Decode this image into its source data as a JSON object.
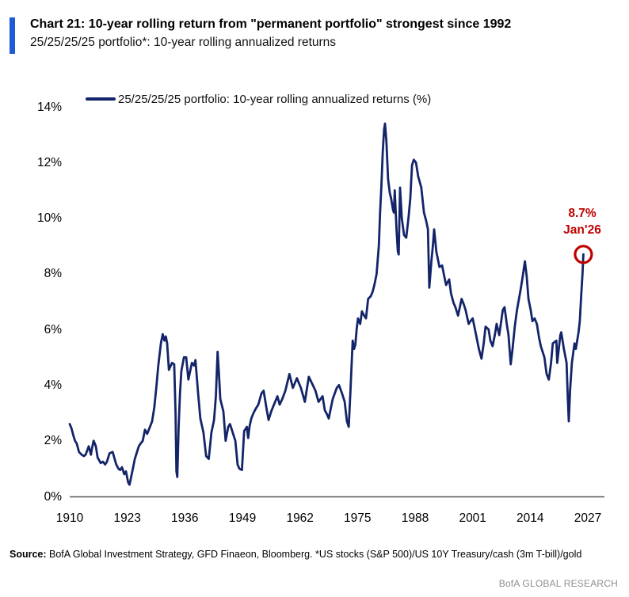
{
  "header": {
    "title": "Chart 21: 10-year rolling return from \"permanent portfolio\" strongest since 1992",
    "subtitle": "25/25/25/25 portfolio*: 10-year rolling annualized returns"
  },
  "legend": {
    "label": "25/25/25/25 portfolio: 10-year rolling annualized returns (%)"
  },
  "annotation": {
    "value": "8.7%",
    "date": "Jan'26"
  },
  "footer": {
    "source_label": "Source:",
    "source_text": " BofA Global Investment Strategy, GFD Finaeon, Bloomberg. *US stocks (S&P 500)/US 10Y Treasury/cash (3m T-bill)/gold",
    "brand": "BofA GLOBAL RESEARCH"
  },
  "colors": {
    "accent_bar": "#1e5bd6",
    "line": "#132469",
    "annotation_red": "#c00000",
    "axis": "#555555",
    "brand_text": "#8f8f8f"
  },
  "chart_data": {
    "type": "line",
    "title": "25/25/25/25 portfolio: 10-year rolling annualized returns (%)",
    "xlabel": "",
    "ylabel": "",
    "xlim": [
      1910,
      2027
    ],
    "ylim": [
      0,
      14
    ],
    "x_ticks": [
      1910,
      1923,
      1936,
      1949,
      1962,
      1975,
      1988,
      2001,
      2014,
      2027
    ],
    "y_ticks": [
      0,
      2,
      4,
      6,
      8,
      10,
      12,
      14
    ],
    "y_tick_suffix": "%",
    "grid": false,
    "legend_position": "top-left",
    "end_annotation": {
      "x": 2026.0,
      "y": 8.7,
      "label_value": "8.7%",
      "label_date": "Jan'26",
      "circled": true
    },
    "series": [
      {
        "name": "25/25/25/25 portfolio: 10-year rolling annualized returns (%)",
        "points": [
          [
            1910.0,
            2.6
          ],
          [
            1910.4,
            2.45
          ],
          [
            1910.8,
            2.2
          ],
          [
            1911.2,
            2.0
          ],
          [
            1911.6,
            1.9
          ],
          [
            1912.1,
            1.6
          ],
          [
            1912.7,
            1.5
          ],
          [
            1913.2,
            1.45
          ],
          [
            1913.6,
            1.5
          ],
          [
            1914.3,
            1.8
          ],
          [
            1914.8,
            1.5
          ],
          [
            1915.0,
            1.7
          ],
          [
            1915.4,
            2.0
          ],
          [
            1915.9,
            1.8
          ],
          [
            1916.3,
            1.4
          ],
          [
            1917.0,
            1.2
          ],
          [
            1917.5,
            1.25
          ],
          [
            1918.0,
            1.15
          ],
          [
            1918.4,
            1.25
          ],
          [
            1919.0,
            1.55
          ],
          [
            1919.7,
            1.6
          ],
          [
            1920.5,
            1.15
          ],
          [
            1921.0,
            1.0
          ],
          [
            1921.4,
            0.95
          ],
          [
            1921.8,
            1.05
          ],
          [
            1922.3,
            0.8
          ],
          [
            1922.7,
            0.9
          ],
          [
            1923.2,
            0.5
          ],
          [
            1923.5,
            0.42
          ],
          [
            1924.0,
            0.8
          ],
          [
            1924.7,
            1.35
          ],
          [
            1925.6,
            1.8
          ],
          [
            1926.0,
            1.9
          ],
          [
            1926.5,
            2.0
          ],
          [
            1927.0,
            2.4
          ],
          [
            1927.5,
            2.25
          ],
          [
            1928.0,
            2.45
          ],
          [
            1928.6,
            2.7
          ],
          [
            1929.1,
            3.2
          ],
          [
            1929.6,
            4.0
          ],
          [
            1930.0,
            4.7
          ],
          [
            1930.6,
            5.5
          ],
          [
            1931.0,
            5.83
          ],
          [
            1931.4,
            5.6
          ],
          [
            1931.7,
            5.75
          ],
          [
            1932.0,
            5.5
          ],
          [
            1932.4,
            4.55
          ],
          [
            1933.1,
            4.8
          ],
          [
            1933.6,
            4.75
          ],
          [
            1933.9,
            3.0
          ],
          [
            1934.1,
            0.9
          ],
          [
            1934.3,
            0.7
          ],
          [
            1934.6,
            2.5
          ],
          [
            1934.9,
            3.7
          ],
          [
            1935.2,
            4.5
          ],
          [
            1935.8,
            5.0
          ],
          [
            1936.3,
            5.0
          ],
          [
            1936.8,
            4.2
          ],
          [
            1937.2,
            4.5
          ],
          [
            1937.6,
            4.8
          ],
          [
            1938.1,
            4.7
          ],
          [
            1938.4,
            4.9
          ],
          [
            1939.0,
            3.7
          ],
          [
            1939.5,
            2.8
          ],
          [
            1940.2,
            2.3
          ],
          [
            1940.8,
            1.45
          ],
          [
            1941.4,
            1.35
          ],
          [
            1942.0,
            2.3
          ],
          [
            1942.6,
            2.75
          ],
          [
            1943.0,
            3.6
          ],
          [
            1943.4,
            5.2
          ],
          [
            1943.7,
            4.4
          ],
          [
            1944.0,
            3.5
          ],
          [
            1944.7,
            3.05
          ],
          [
            1945.2,
            2.0
          ],
          [
            1945.8,
            2.5
          ],
          [
            1946.2,
            2.6
          ],
          [
            1946.6,
            2.4
          ],
          [
            1947.0,
            2.2
          ],
          [
            1947.4,
            2.0
          ],
          [
            1947.9,
            1.15
          ],
          [
            1948.3,
            1.0
          ],
          [
            1948.9,
            0.95
          ],
          [
            1949.4,
            2.35
          ],
          [
            1950.0,
            2.5
          ],
          [
            1950.3,
            2.1
          ],
          [
            1950.6,
            2.5
          ],
          [
            1951.0,
            2.8
          ],
          [
            1951.5,
            3.0
          ],
          [
            1952.0,
            3.15
          ],
          [
            1952.6,
            3.3
          ],
          [
            1953.3,
            3.7
          ],
          [
            1953.8,
            3.8
          ],
          [
            1954.4,
            3.2
          ],
          [
            1954.9,
            2.75
          ],
          [
            1955.5,
            3.05
          ],
          [
            1956.0,
            3.25
          ],
          [
            1956.9,
            3.6
          ],
          [
            1957.4,
            3.3
          ],
          [
            1958.0,
            3.5
          ],
          [
            1958.7,
            3.8
          ],
          [
            1959.6,
            4.4
          ],
          [
            1960.4,
            3.9
          ],
          [
            1961.3,
            4.25
          ],
          [
            1962.2,
            3.9
          ],
          [
            1963.1,
            3.4
          ],
          [
            1964.0,
            4.3
          ],
          [
            1964.9,
            4.0
          ],
          [
            1965.5,
            3.8
          ],
          [
            1966.2,
            3.4
          ],
          [
            1967.1,
            3.6
          ],
          [
            1967.6,
            3.1
          ],
          [
            1968.1,
            2.95
          ],
          [
            1968.5,
            2.8
          ],
          [
            1969.0,
            3.2
          ],
          [
            1969.4,
            3.5
          ],
          [
            1970.3,
            3.9
          ],
          [
            1970.8,
            4.0
          ],
          [
            1971.5,
            3.7
          ],
          [
            1972.1,
            3.4
          ],
          [
            1972.6,
            2.7
          ],
          [
            1973.0,
            2.5
          ],
          [
            1973.4,
            3.8
          ],
          [
            1973.9,
            5.6
          ],
          [
            1974.2,
            5.3
          ],
          [
            1974.5,
            5.45
          ],
          [
            1974.8,
            6.0
          ],
          [
            1975.1,
            6.4
          ],
          [
            1975.6,
            6.2
          ],
          [
            1976.0,
            6.65
          ],
          [
            1976.5,
            6.5
          ],
          [
            1976.9,
            6.4
          ],
          [
            1977.4,
            7.1
          ],
          [
            1978.0,
            7.2
          ],
          [
            1978.4,
            7.35
          ],
          [
            1978.8,
            7.6
          ],
          [
            1979.3,
            8.0
          ],
          [
            1979.8,
            9.0
          ],
          [
            1980.1,
            10.2
          ],
          [
            1980.4,
            11.2
          ],
          [
            1980.7,
            12.4
          ],
          [
            1981.0,
            13.2
          ],
          [
            1981.2,
            13.4
          ],
          [
            1981.5,
            12.8
          ],
          [
            1981.9,
            11.4
          ],
          [
            1982.3,
            10.9
          ],
          [
            1982.6,
            10.7
          ],
          [
            1983.0,
            10.3
          ],
          [
            1983.2,
            10.2
          ],
          [
            1983.4,
            11.0
          ],
          [
            1983.8,
            9.6
          ],
          [
            1984.1,
            8.8
          ],
          [
            1984.3,
            8.7
          ],
          [
            1984.6,
            11.1
          ],
          [
            1985.0,
            10.0
          ],
          [
            1985.5,
            9.4
          ],
          [
            1986.0,
            9.3
          ],
          [
            1986.5,
            10.0
          ],
          [
            1986.9,
            10.7
          ],
          [
            1987.3,
            11.9
          ],
          [
            1987.7,
            12.1
          ],
          [
            1988.2,
            12.0
          ],
          [
            1988.7,
            11.5
          ],
          [
            1989.4,
            11.1
          ],
          [
            1990.0,
            10.2
          ],
          [
            1990.5,
            9.9
          ],
          [
            1990.9,
            9.6
          ],
          [
            1991.2,
            7.5
          ],
          [
            1991.7,
            8.5
          ],
          [
            1992.0,
            9.0
          ],
          [
            1992.3,
            9.6
          ],
          [
            1992.8,
            8.8
          ],
          [
            1993.5,
            8.25
          ],
          [
            1994.1,
            8.3
          ],
          [
            1994.6,
            7.9
          ],
          [
            1995.0,
            7.6
          ],
          [
            1995.7,
            7.8
          ],
          [
            1996.1,
            7.3
          ],
          [
            1996.7,
            6.95
          ],
          [
            1997.1,
            6.8
          ],
          [
            1997.7,
            6.5
          ],
          [
            1998.5,
            7.1
          ],
          [
            1999.0,
            6.9
          ],
          [
            1999.4,
            6.7
          ],
          [
            2000.1,
            6.2
          ],
          [
            2000.5,
            6.3
          ],
          [
            2001.0,
            6.4
          ],
          [
            2001.9,
            5.7
          ],
          [
            2002.4,
            5.3
          ],
          [
            2003.0,
            4.95
          ],
          [
            2003.5,
            5.5
          ],
          [
            2003.9,
            6.1
          ],
          [
            2004.6,
            6.0
          ],
          [
            2005.0,
            5.6
          ],
          [
            2005.5,
            5.4
          ],
          [
            2006.0,
            5.8
          ],
          [
            2006.4,
            6.2
          ],
          [
            2007.0,
            5.8
          ],
          [
            2007.8,
            6.7
          ],
          [
            2008.2,
            6.8
          ],
          [
            2008.7,
            6.2
          ],
          [
            2009.1,
            5.8
          ],
          [
            2009.6,
            4.75
          ],
          [
            2010.0,
            5.3
          ],
          [
            2010.5,
            6.1
          ],
          [
            2011.0,
            6.7
          ],
          [
            2011.8,
            7.4
          ],
          [
            2012.3,
            7.9
          ],
          [
            2012.8,
            8.45
          ],
          [
            2013.2,
            7.9
          ],
          [
            2013.6,
            7.1
          ],
          [
            2014.1,
            6.7
          ],
          [
            2014.5,
            6.3
          ],
          [
            2015.0,
            6.4
          ],
          [
            2015.5,
            6.2
          ],
          [
            2016.0,
            5.7
          ],
          [
            2016.4,
            5.4
          ],
          [
            2017.2,
            5.0
          ],
          [
            2017.7,
            4.4
          ],
          [
            2018.2,
            4.2
          ],
          [
            2018.7,
            4.8
          ],
          [
            2019.1,
            5.5
          ],
          [
            2019.9,
            5.6
          ],
          [
            2020.1,
            4.8
          ],
          [
            2020.8,
            5.8
          ],
          [
            2021.0,
            5.9
          ],
          [
            2021.6,
            5.3
          ],
          [
            2022.2,
            4.8
          ],
          [
            2022.5,
            3.5
          ],
          [
            2022.7,
            2.7
          ],
          [
            2023.0,
            3.8
          ],
          [
            2023.4,
            4.8
          ],
          [
            2024.0,
            5.5
          ],
          [
            2024.3,
            5.3
          ],
          [
            2024.9,
            5.9
          ],
          [
            2025.2,
            6.3
          ],
          [
            2025.5,
            7.2
          ],
          [
            2025.8,
            8.0
          ],
          [
            2026.0,
            8.7
          ]
        ]
      }
    ]
  }
}
